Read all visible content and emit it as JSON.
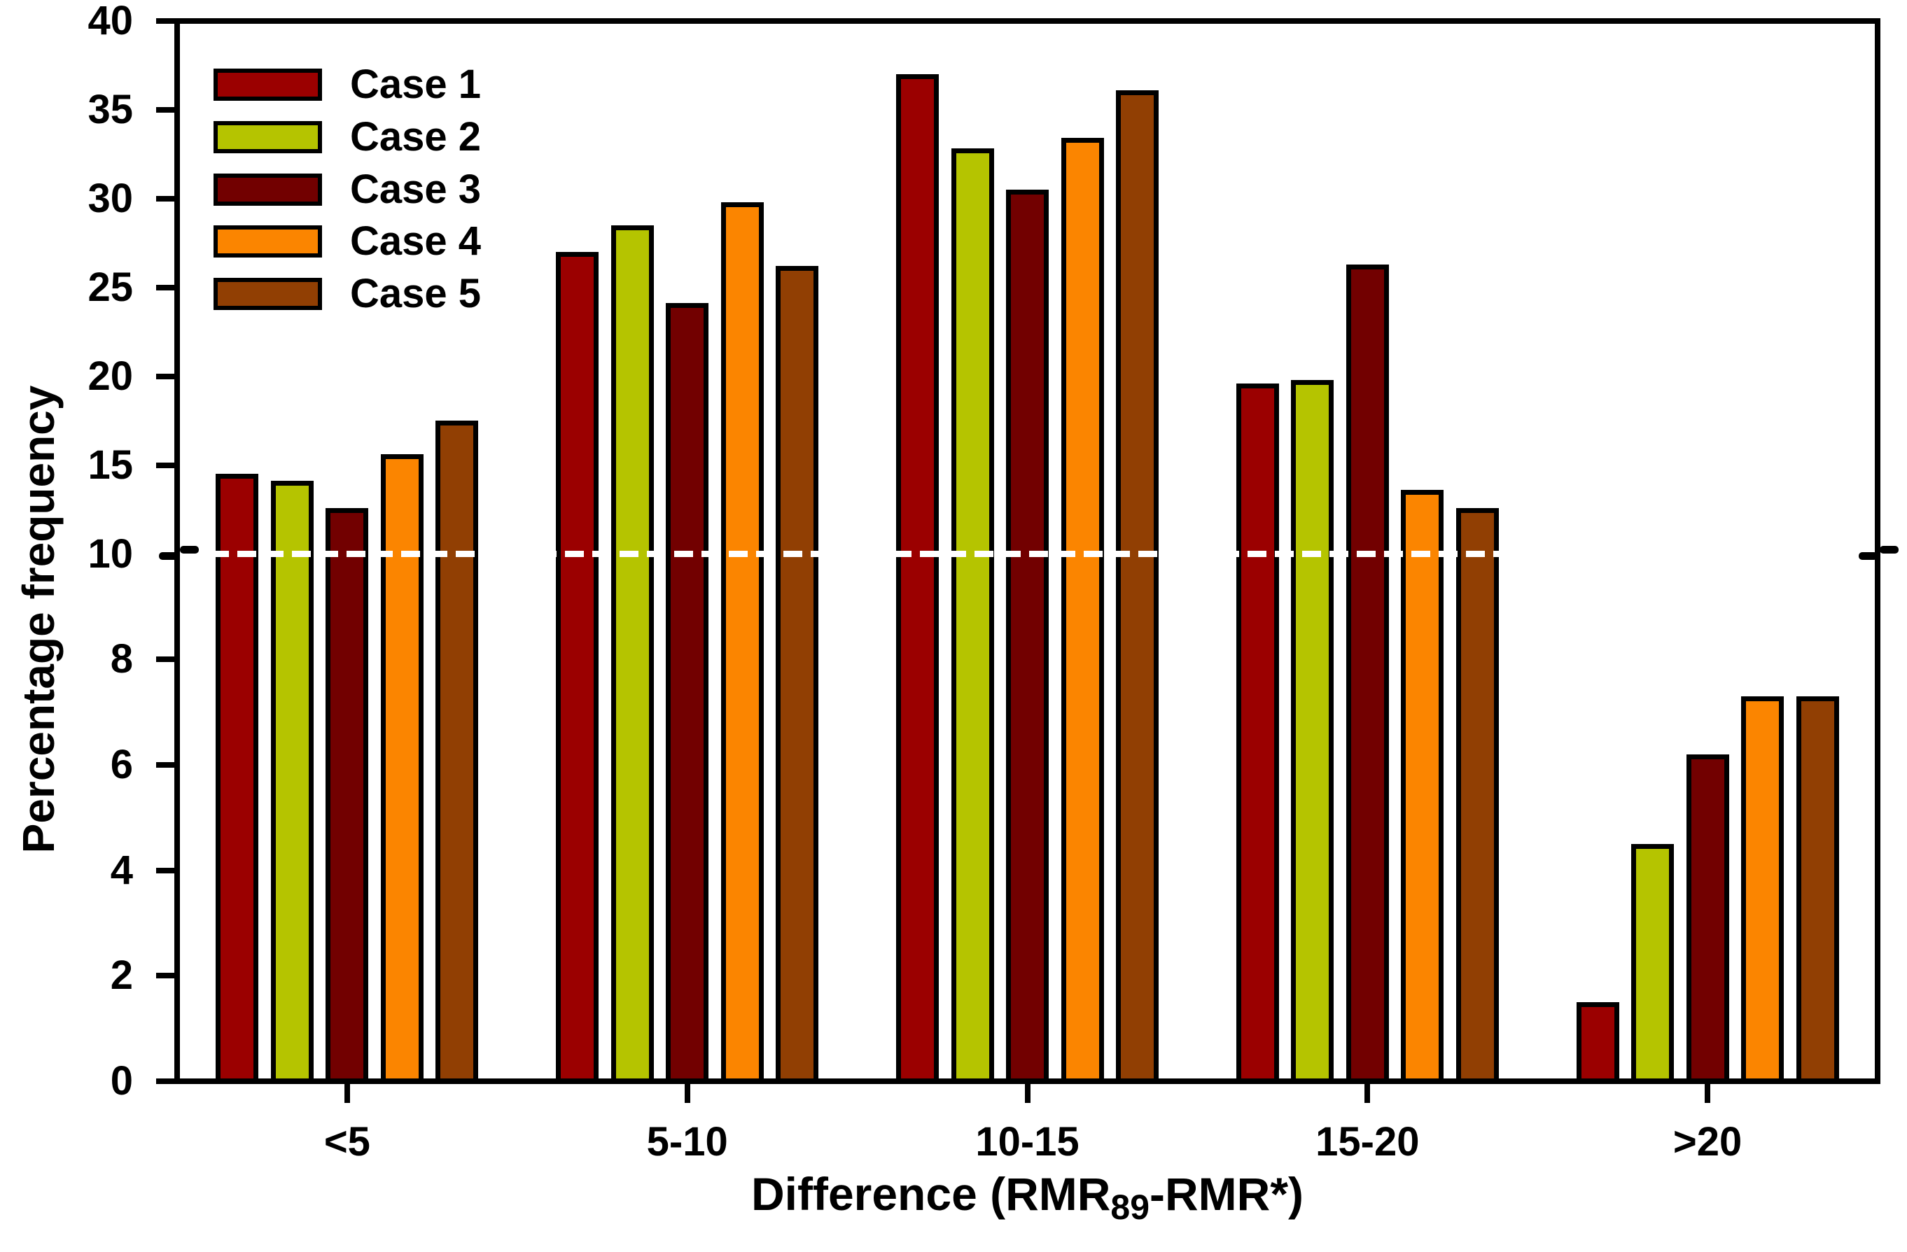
{
  "chart_data": {
    "type": "bar",
    "ylabel": "Percentage frequency",
    "xlabel": {
      "prefix": "Difference (RMR",
      "subscript": "89",
      "suffix": "-RMR*)"
    },
    "categories": [
      "<5",
      "5-10",
      "10-15",
      "15-20",
      ">20"
    ],
    "series": [
      {
        "name": "Case 1",
        "color": "#9B0000",
        "values": [
          14.5,
          27.0,
          37.0,
          19.6,
          1.5
        ]
      },
      {
        "name": "Case 2",
        "color": "#B5C400",
        "values": [
          14.1,
          28.5,
          32.8,
          19.8,
          4.5
        ]
      },
      {
        "name": "Case 3",
        "color": "#720000",
        "values": [
          12.6,
          24.1,
          30.5,
          26.3,
          6.2
        ]
      },
      {
        "name": "Case 4",
        "color": "#FB8500",
        "values": [
          15.6,
          29.8,
          33.4,
          13.6,
          7.3
        ]
      },
      {
        "name": "Case 5",
        "color": "#913F03",
        "values": [
          17.5,
          26.2,
          36.1,
          12.6,
          7.3
        ]
      }
    ],
    "legend": {
      "position": "top-left",
      "labels": [
        "Case 1",
        "Case 2",
        "Case 3",
        "Case 4",
        "Case 5"
      ]
    },
    "y_axis": {
      "break_at": 10,
      "break_label": "10",
      "upper_ticks": [
        15,
        20,
        25,
        30,
        35,
        40
      ],
      "lower_ticks": [
        0,
        2,
        4,
        6,
        8
      ],
      "upper_range": [
        10,
        40
      ],
      "lower_range": [
        0,
        10
      ],
      "break_line_color": "#FFFFFF"
    },
    "grid": false
  }
}
